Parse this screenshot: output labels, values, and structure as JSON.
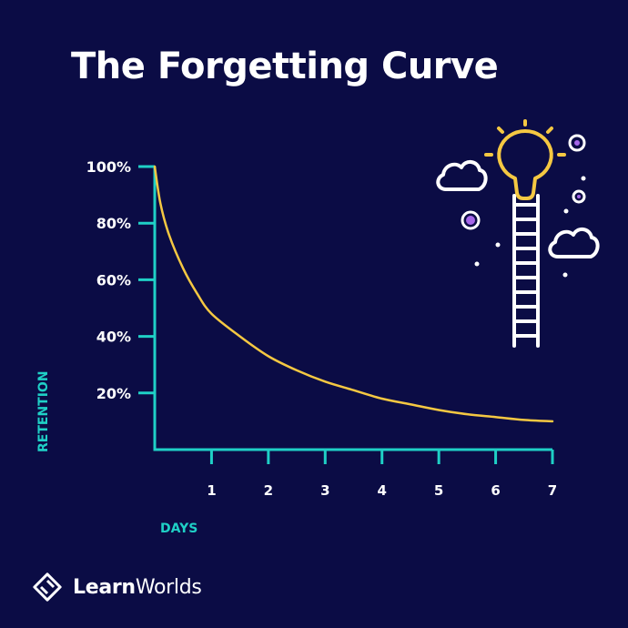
{
  "title": "The Forgetting Curve",
  "colors": {
    "background": "#0b0c45",
    "axis": "#1fd0c6",
    "curve": "#f5c842",
    "text": "#ffffff",
    "accent_purple": "#a566e8"
  },
  "chart_data": {
    "type": "line",
    "title": "The Forgetting Curve",
    "xlabel": "DAYS",
    "ylabel": "RETENTION",
    "xlim": [
      0,
      7
    ],
    "ylim": [
      0,
      100
    ],
    "x_ticks": [
      "1",
      "2",
      "3",
      "4",
      "5",
      "6",
      "7"
    ],
    "y_ticks": [
      "20%",
      "40%",
      "60%",
      "80%",
      "100%"
    ],
    "grid": false,
    "series": [
      {
        "x": [
          0,
          0.1,
          0.25,
          0.5,
          0.75,
          1,
          1.5,
          2,
          2.5,
          3,
          3.5,
          4,
          4.5,
          5,
          5.5,
          6,
          6.5,
          7
        ],
        "y": [
          100,
          87,
          76,
          64,
          55,
          48,
          40,
          33,
          28,
          24,
          21,
          18,
          16,
          14,
          12.5,
          11.5,
          10.5,
          10
        ]
      }
    ]
  },
  "brand": {
    "name_bold": "Learn",
    "name_regular": "Worlds"
  },
  "illustration": {
    "icons": [
      "lightbulb-icon",
      "ladder-icon",
      "cloud-icon",
      "cloud-icon",
      "dot-icon"
    ]
  }
}
